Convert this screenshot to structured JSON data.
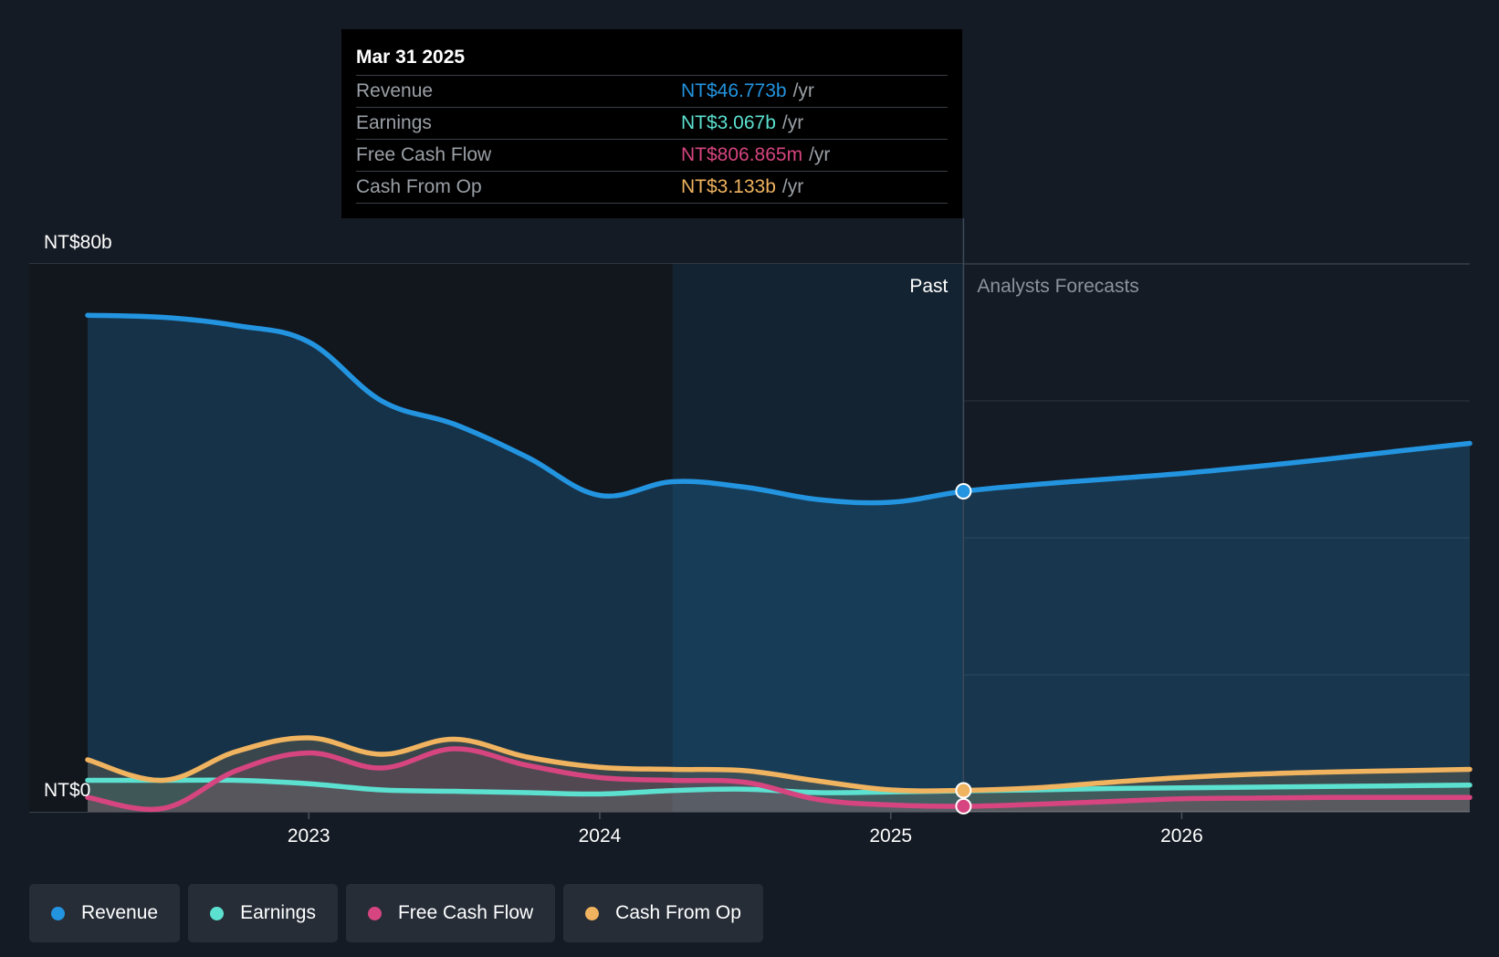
{
  "tooltip": {
    "date": "Mar 31 2025",
    "rows": [
      {
        "label": "Revenue",
        "value": "NT$46.773b",
        "unit": "/yr",
        "color": "#2394e0"
      },
      {
        "label": "Earnings",
        "value": "NT$3.067b",
        "unit": "/yr",
        "color": "#5ce0cf"
      },
      {
        "label": "Free Cash Flow",
        "value": "NT$806.865m",
        "unit": "/yr",
        "color": "#d6457f"
      },
      {
        "label": "Cash From Op",
        "value": "NT$3.133b",
        "unit": "/yr",
        "color": "#f0b35f"
      }
    ]
  },
  "legend": [
    {
      "label": "Revenue",
      "color": "#2394e0"
    },
    {
      "label": "Earnings",
      "color": "#5ce0cf"
    },
    {
      "label": "Free Cash Flow",
      "color": "#d6457f"
    },
    {
      "label": "Cash From Op",
      "color": "#f0b35f"
    }
  ],
  "chart_data": {
    "type": "line",
    "title": "",
    "xlabel": "",
    "ylabel": "",
    "y_tick_labels": {
      "top": "NT$80b",
      "bottom": "NT$0"
    },
    "ylim": [
      0,
      80
    ],
    "xlim": [
      2022.24,
      2026.99
    ],
    "x_ticks": [
      2023,
      2024,
      2025,
      2026
    ],
    "x_tick_labels": [
      "2023",
      "2024",
      "2025",
      "2026"
    ],
    "past_label": "Past",
    "forecast_label": "Analysts Forecasts",
    "divider_x": 2025.25,
    "highlight_start_x": 2024.25,
    "series": [
      {
        "name": "Revenue",
        "color": "#2394e0",
        "x": [
          2022.24,
          2022.5,
          2022.75,
          2023.0,
          2023.25,
          2023.5,
          2023.75,
          2024.0,
          2024.25,
          2024.5,
          2024.75,
          2025.0,
          2025.25,
          2025.5,
          2025.75,
          2026.0,
          2026.25,
          2026.5,
          2026.75,
          2026.99
        ],
        "y": [
          72.5,
          72.2,
          71.0,
          68.6,
          60.0,
          56.6,
          51.8,
          46.2,
          48.2,
          47.4,
          45.6,
          45.2,
          46.8,
          47.8,
          48.6,
          49.4,
          50.4,
          51.5,
          52.7,
          53.8
        ]
      },
      {
        "name": "Earnings",
        "color": "#5ce0cf",
        "x": [
          2022.24,
          2022.5,
          2022.75,
          2023.0,
          2023.25,
          2023.5,
          2023.75,
          2024.0,
          2024.25,
          2024.5,
          2024.75,
          2025.0,
          2025.25,
          2025.5,
          2025.75,
          2026.0,
          2026.25,
          2026.5,
          2026.75,
          2026.99
        ],
        "y": [
          4.6,
          4.6,
          4.6,
          4.1,
          3.2,
          3.0,
          2.8,
          2.6,
          3.1,
          3.3,
          2.8,
          2.9,
          3.07,
          3.2,
          3.4,
          3.5,
          3.6,
          3.7,
          3.8,
          3.9
        ]
      },
      {
        "name": "Free Cash Flow",
        "color": "#d6457f",
        "x": [
          2022.24,
          2022.5,
          2022.75,
          2023.0,
          2023.25,
          2023.5,
          2023.75,
          2024.0,
          2024.25,
          2024.5,
          2024.75,
          2025.0,
          2025.25,
          2025.5,
          2025.75,
          2026.0,
          2026.25,
          2026.5,
          2026.75,
          2026.99
        ],
        "y": [
          2.1,
          0.5,
          6.0,
          8.6,
          6.4,
          9.2,
          6.8,
          5.0,
          4.6,
          4.3,
          1.8,
          1.0,
          0.81,
          1.1,
          1.5,
          1.9,
          2.0,
          2.1,
          2.1,
          2.1
        ]
      },
      {
        "name": "Cash From Op",
        "color": "#f0b35f",
        "x": [
          2022.24,
          2022.5,
          2022.75,
          2023.0,
          2023.25,
          2023.5,
          2023.75,
          2024.0,
          2024.25,
          2024.5,
          2024.75,
          2025.0,
          2025.25,
          2025.5,
          2025.75,
          2026.0,
          2026.25,
          2026.5,
          2026.75,
          2026.99
        ],
        "y": [
          7.6,
          4.6,
          8.8,
          10.8,
          8.4,
          10.6,
          8.0,
          6.5,
          6.2,
          6.0,
          4.5,
          3.2,
          3.13,
          3.5,
          4.3,
          5.0,
          5.5,
          5.8,
          6.0,
          6.2
        ]
      }
    ]
  }
}
